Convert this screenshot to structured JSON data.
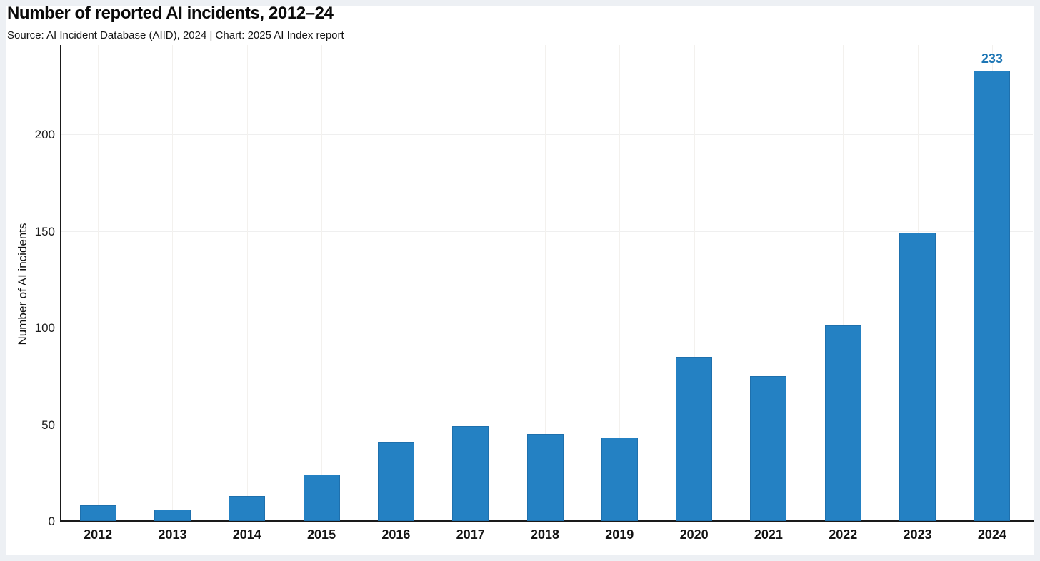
{
  "page": {
    "background_color": "#edf0f4",
    "card_color": "#ffffff"
  },
  "header": {
    "title": "Number of reported AI incidents, 2012–24",
    "source_line": "Source: AI Incident Database (AIID), 2024 | Chart: 2025 AI Index report"
  },
  "chart_data": {
    "type": "bar",
    "title": "Number of reported AI incidents, 2012–24",
    "categories": [
      "2012",
      "2013",
      "2014",
      "2015",
      "2016",
      "2017",
      "2018",
      "2019",
      "2020",
      "2021",
      "2022",
      "2023",
      "2024"
    ],
    "values": [
      8,
      6,
      13,
      24,
      41,
      49,
      45,
      43,
      85,
      75,
      101,
      149,
      233
    ],
    "xlabel": "",
    "ylabel": "Number of AI incidents",
    "ylim": [
      0,
      246
    ],
    "yticks": [
      0,
      50,
      100,
      150,
      200
    ],
    "grid": true,
    "legend": "none",
    "bar_color": "#2481c3",
    "annotation": {
      "category": "2024",
      "text": "233",
      "color": "#1d76b5"
    }
  }
}
